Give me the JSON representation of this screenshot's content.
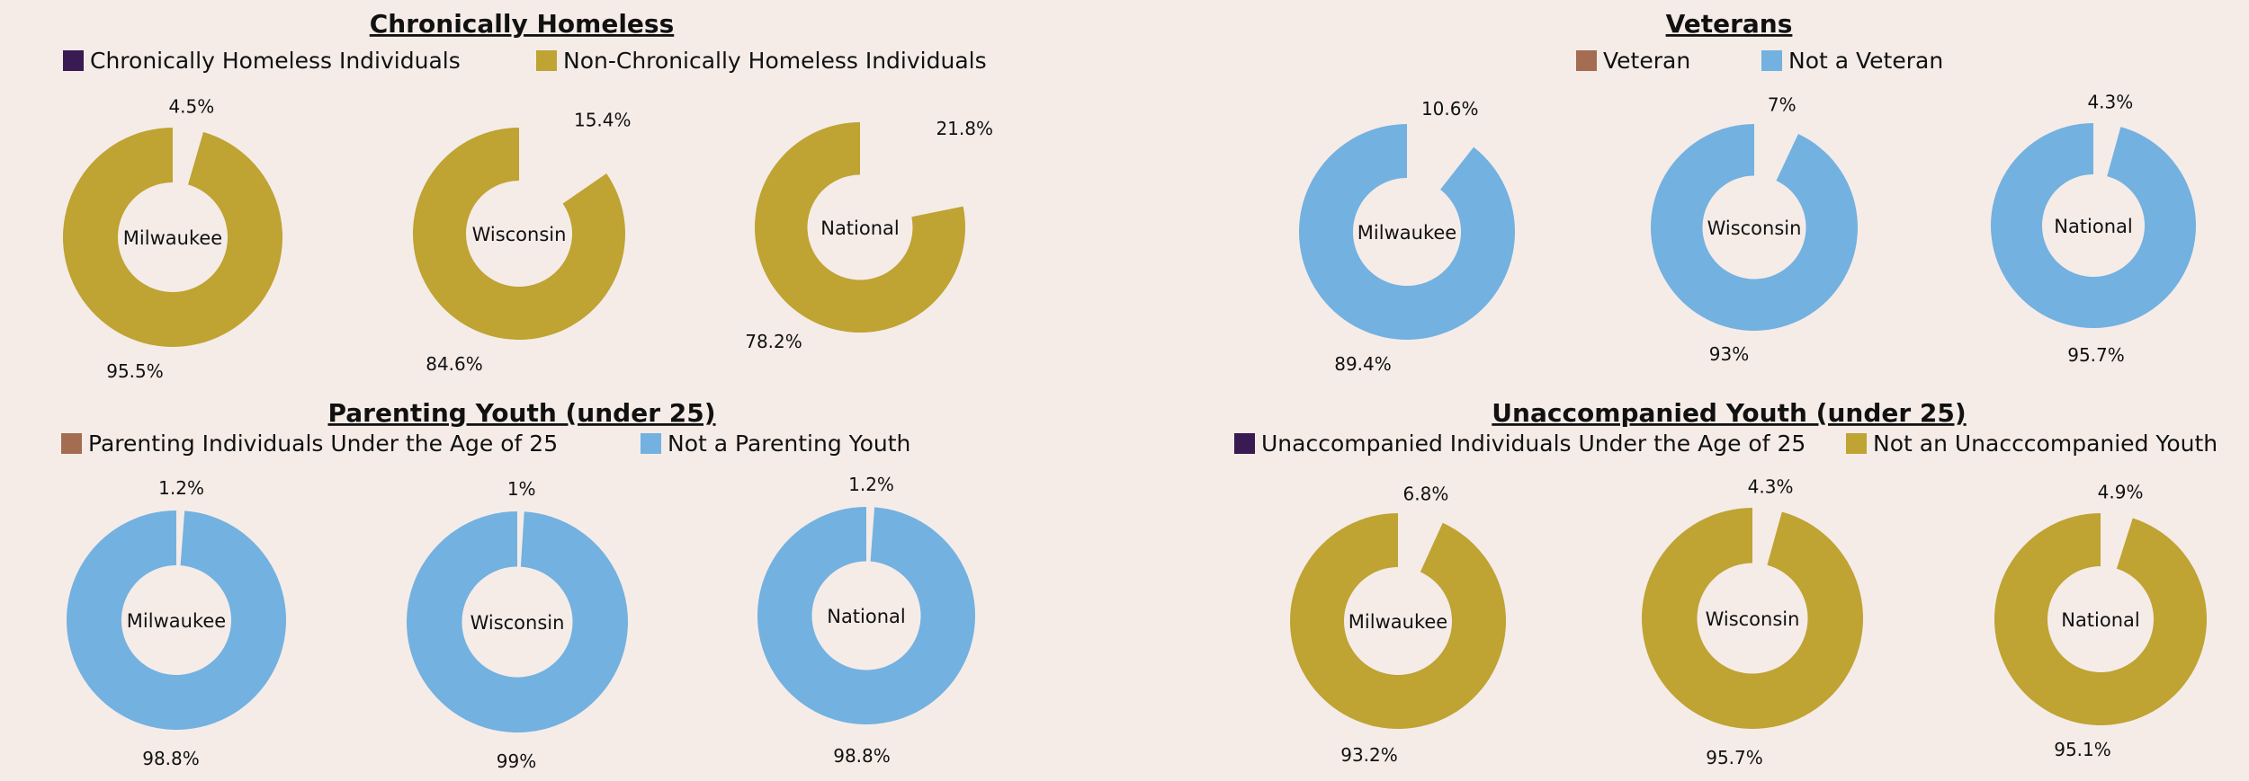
{
  "colors": {
    "background": "#f5ece8",
    "purple": "#3a1a52",
    "gold": "#bfa333",
    "brown": "#a46c50",
    "blue": "#73b1e0",
    "text": "#111111"
  },
  "chart_data": [
    {
      "type": "pie",
      "title": "Chronically Homeless",
      "legend": [
        {
          "label": "Chronically Homeless Individuals",
          "color": "#3a1a52"
        },
        {
          "label": "Non-Chronically Homeless Individuals",
          "color": "#bfa333"
        }
      ],
      "pies": [
        {
          "center_label": "Milwaukee",
          "slices": [
            {
              "value": 4.5,
              "label": "4.5%"
            },
            {
              "value": 95.5,
              "label": "95.5%"
            }
          ]
        },
        {
          "center_label": "Wisconsin",
          "slices": [
            {
              "value": 15.4,
              "label": "15.4%"
            },
            {
              "value": 84.6,
              "label": "84.6%"
            }
          ]
        },
        {
          "center_label": "National",
          "slices": [
            {
              "value": 21.8,
              "label": "21.8%"
            },
            {
              "value": 78.2,
              "label": "78.2%"
            }
          ]
        }
      ]
    },
    {
      "type": "pie",
      "title": "Veterans",
      "legend": [
        {
          "label": "Veteran",
          "color": "#a46c50"
        },
        {
          "label": "Not a Veteran",
          "color": "#73b1e0"
        }
      ],
      "pies": [
        {
          "center_label": "Milwaukee",
          "slices": [
            {
              "value": 10.6,
              "label": "10.6%"
            },
            {
              "value": 89.4,
              "label": "89.4%"
            }
          ]
        },
        {
          "center_label": "Wisconsin",
          "slices": [
            {
              "value": 7,
              "label": "7%"
            },
            {
              "value": 93,
              "label": "93%"
            }
          ]
        },
        {
          "center_label": "National",
          "slices": [
            {
              "value": 4.3,
              "label": "4.3%"
            },
            {
              "value": 95.7,
              "label": "95.7%"
            }
          ]
        }
      ]
    },
    {
      "type": "pie",
      "title": "Parenting Youth (under 25)",
      "legend": [
        {
          "label": "Parenting Individuals Under the Age of 25",
          "color": "#a46c50"
        },
        {
          "label": "Not a Parenting Youth",
          "color": "#73b1e0"
        }
      ],
      "pies": [
        {
          "center_label": "Milwaukee",
          "slices": [
            {
              "value": 1.2,
              "label": "1.2%"
            },
            {
              "value": 98.8,
              "label": "98.8%"
            }
          ]
        },
        {
          "center_label": "Wisconsin",
          "slices": [
            {
              "value": 1,
              "label": "1%"
            },
            {
              "value": 99,
              "label": "99%"
            }
          ]
        },
        {
          "center_label": "National",
          "slices": [
            {
              "value": 1.2,
              "label": "1.2%"
            },
            {
              "value": 98.8,
              "label": "98.8%"
            }
          ]
        }
      ]
    },
    {
      "type": "pie",
      "title": "Unaccompanied Youth (under 25)",
      "legend": [
        {
          "label": "Unaccompanied Individuals Under the Age of 25",
          "color": "#3a1a52"
        },
        {
          "label": "Not an Unacccompanied Youth",
          "color": "#bfa333"
        }
      ],
      "pies": [
        {
          "center_label": "Milwaukee",
          "slices": [
            {
              "value": 6.8,
              "label": "6.8%"
            },
            {
              "value": 93.2,
              "label": "93.2%"
            }
          ]
        },
        {
          "center_label": "Wisconsin",
          "slices": [
            {
              "value": 4.3,
              "label": "4.3%"
            },
            {
              "value": 95.7,
              "label": "95.7%"
            }
          ]
        },
        {
          "center_label": "National",
          "slices": [
            {
              "value": 4.9,
              "label": "4.9%"
            },
            {
              "value": 95.1,
              "label": "95.1%"
            }
          ]
        }
      ]
    }
  ]
}
